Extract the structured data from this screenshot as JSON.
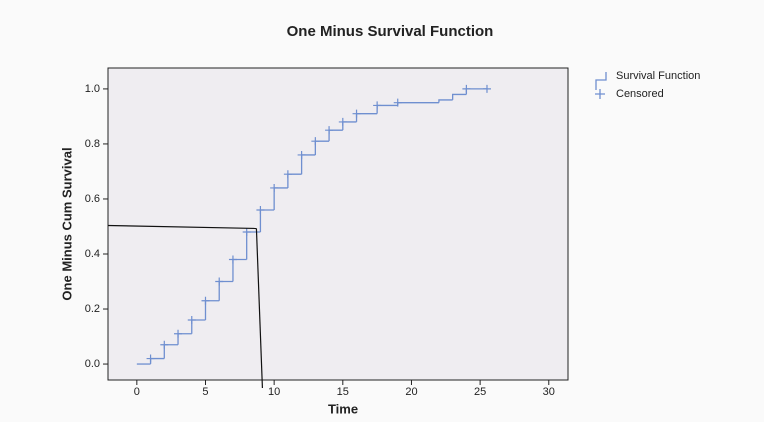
{
  "chart_data": {
    "type": "step",
    "title": "One Minus Survival Function",
    "x_label": "Time",
    "y_label": "One Minus Cum Survival",
    "xlim": [
      -2.1,
      31.4
    ],
    "ylim": [
      -0.058,
      1.076
    ],
    "xticks": [
      0,
      5,
      10,
      15,
      20,
      25,
      30
    ],
    "yticks": [
      {
        "value": 0,
        "label": "0.0"
      },
      {
        "value": 0.2,
        "label": "0.2"
      },
      {
        "value": 0.4,
        "label": "0.4"
      },
      {
        "value": 0.6,
        "label": "0.6"
      },
      {
        "value": 0.8,
        "label": "0.8"
      },
      {
        "value": 1,
        "label": "1.0"
      }
    ],
    "legend": "right",
    "series": [
      {
        "name": "Survival Function",
        "color": "#6f8fd0",
        "x": [
          0,
          1,
          2,
          3,
          4,
          5,
          6,
          7,
          8,
          9,
          10,
          11,
          12,
          13,
          14,
          15,
          16,
          17.5,
          19,
          22,
          23,
          24,
          25.5
        ],
        "values": [
          0,
          0.02,
          0.07,
          0.11,
          0.16,
          0.23,
          0.3,
          0.38,
          0.48,
          0.56,
          0.64,
          0.69,
          0.76,
          0.81,
          0.85,
          0.88,
          0.91,
          0.94,
          0.95,
          0.96,
          0.98,
          1.0,
          1.0
        ]
      },
      {
        "name": "Censored",
        "color": "#6f8fd0",
        "x": [
          1,
          2,
          3,
          4,
          5,
          6,
          7,
          8,
          9,
          10,
          11,
          12,
          13,
          14,
          15,
          16,
          17.5,
          19,
          24,
          25.5
        ],
        "values": [
          0.02,
          0.07,
          0.11,
          0.16,
          0.23,
          0.3,
          0.38,
          0.48,
          0.56,
          0.64,
          0.69,
          0.76,
          0.81,
          0.85,
          0.88,
          0.91,
          0.94,
          0.95,
          1.0,
          1.0
        ]
      }
    ],
    "reference": {
      "y": 0.5,
      "x": 9
    }
  }
}
